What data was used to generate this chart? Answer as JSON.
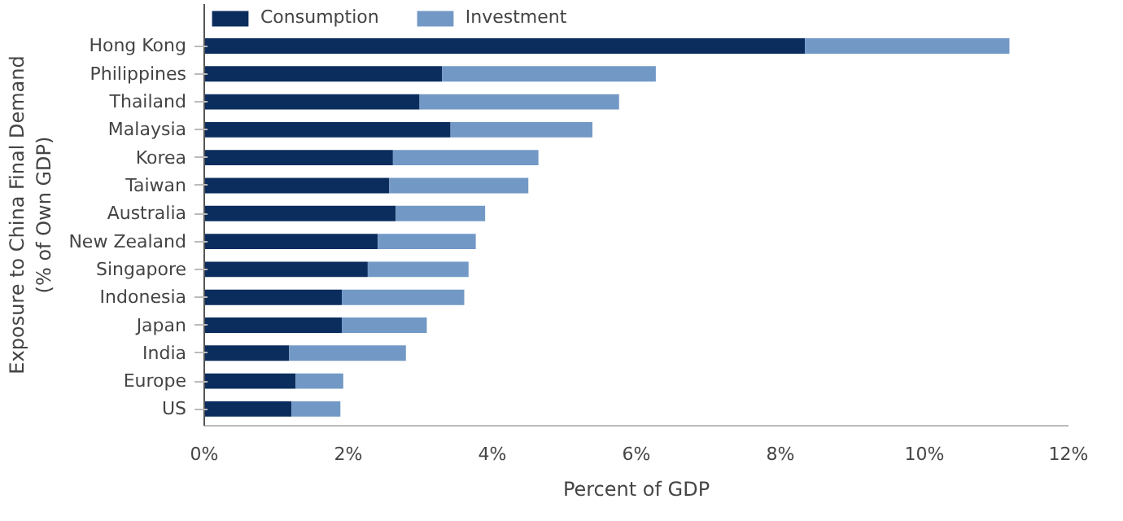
{
  "chart_data": {
    "type": "bar",
    "orientation": "horizontal",
    "stacked": true,
    "xlabel": "Percent of GDP",
    "ylabel": "Exposure to China Final Demand\n(% of Own GDP)",
    "categories": [
      "Hong Kong",
      "Philippines",
      "Thailand",
      "Malaysia",
      "Korea",
      "Taiwan",
      "Australia",
      "New Zealand",
      "Singapore",
      "Indonesia",
      "Japan",
      "India",
      "Europe",
      "US"
    ],
    "series": [
      {
        "name": "Consumption",
        "color": "#0b2d5e",
        "values": [
          8.34,
          3.3,
          2.99,
          3.42,
          2.62,
          2.57,
          2.66,
          2.41,
          2.27,
          1.91,
          1.91,
          1.18,
          1.27,
          1.21
        ]
      },
      {
        "name": "Investment",
        "color": "#7298c6",
        "values": [
          2.84,
          2.97,
          2.77,
          1.97,
          2.02,
          1.93,
          1.24,
          1.36,
          1.4,
          1.7,
          1.18,
          1.62,
          0.66,
          0.68
        ]
      }
    ],
    "xlim": [
      0,
      12
    ],
    "xticks": [
      {
        "value": 0,
        "label": "0%"
      },
      {
        "value": 2,
        "label": "2%"
      },
      {
        "value": 4,
        "label": "4%"
      },
      {
        "value": 6,
        "label": "6%"
      },
      {
        "value": 8,
        "label": "8%"
      },
      {
        "value": 10,
        "label": "10%"
      },
      {
        "value": 12,
        "label": "12%"
      }
    ],
    "grid": false,
    "legend": "top left"
  }
}
